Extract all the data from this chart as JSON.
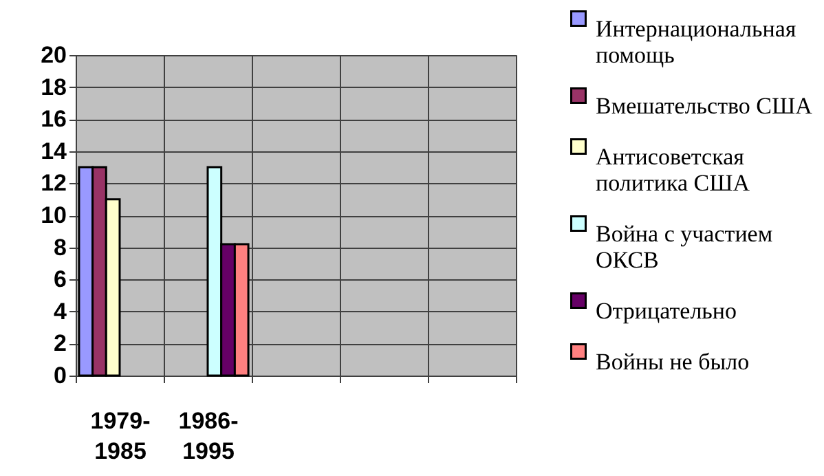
{
  "chart_data": {
    "type": "bar",
    "categories": [
      "1979-1985",
      "1986-1995",
      null,
      null,
      null
    ],
    "series": [
      {
        "name": "Интернациональная помощь",
        "color": "#9999ff",
        "values": [
          13,
          null,
          null,
          null,
          null
        ]
      },
      {
        "name": "Вмешательство США",
        "color": "#993366",
        "values": [
          13,
          null,
          null,
          null,
          null
        ]
      },
      {
        "name": "Антисоветская политика США",
        "color": "#ffffcc",
        "values": [
          11,
          null,
          null,
          null,
          null
        ]
      },
      {
        "name": "Война с участием ОКСВ",
        "color": "#ccffff",
        "values": [
          null,
          13,
          null,
          null,
          null
        ]
      },
      {
        "name": "Отрицательно",
        "color": "#660066",
        "values": [
          null,
          8.2,
          null,
          null,
          null
        ]
      },
      {
        "name": "Войны не было",
        "color": "#ff8080",
        "values": [
          null,
          8.2,
          null,
          null,
          null
        ]
      }
    ],
    "ylim": [
      0,
      20
    ],
    "yticks": [
      0,
      2,
      4,
      6,
      8,
      10,
      12,
      14,
      16,
      18,
      20
    ],
    "grid": true,
    "legend": "right"
  }
}
